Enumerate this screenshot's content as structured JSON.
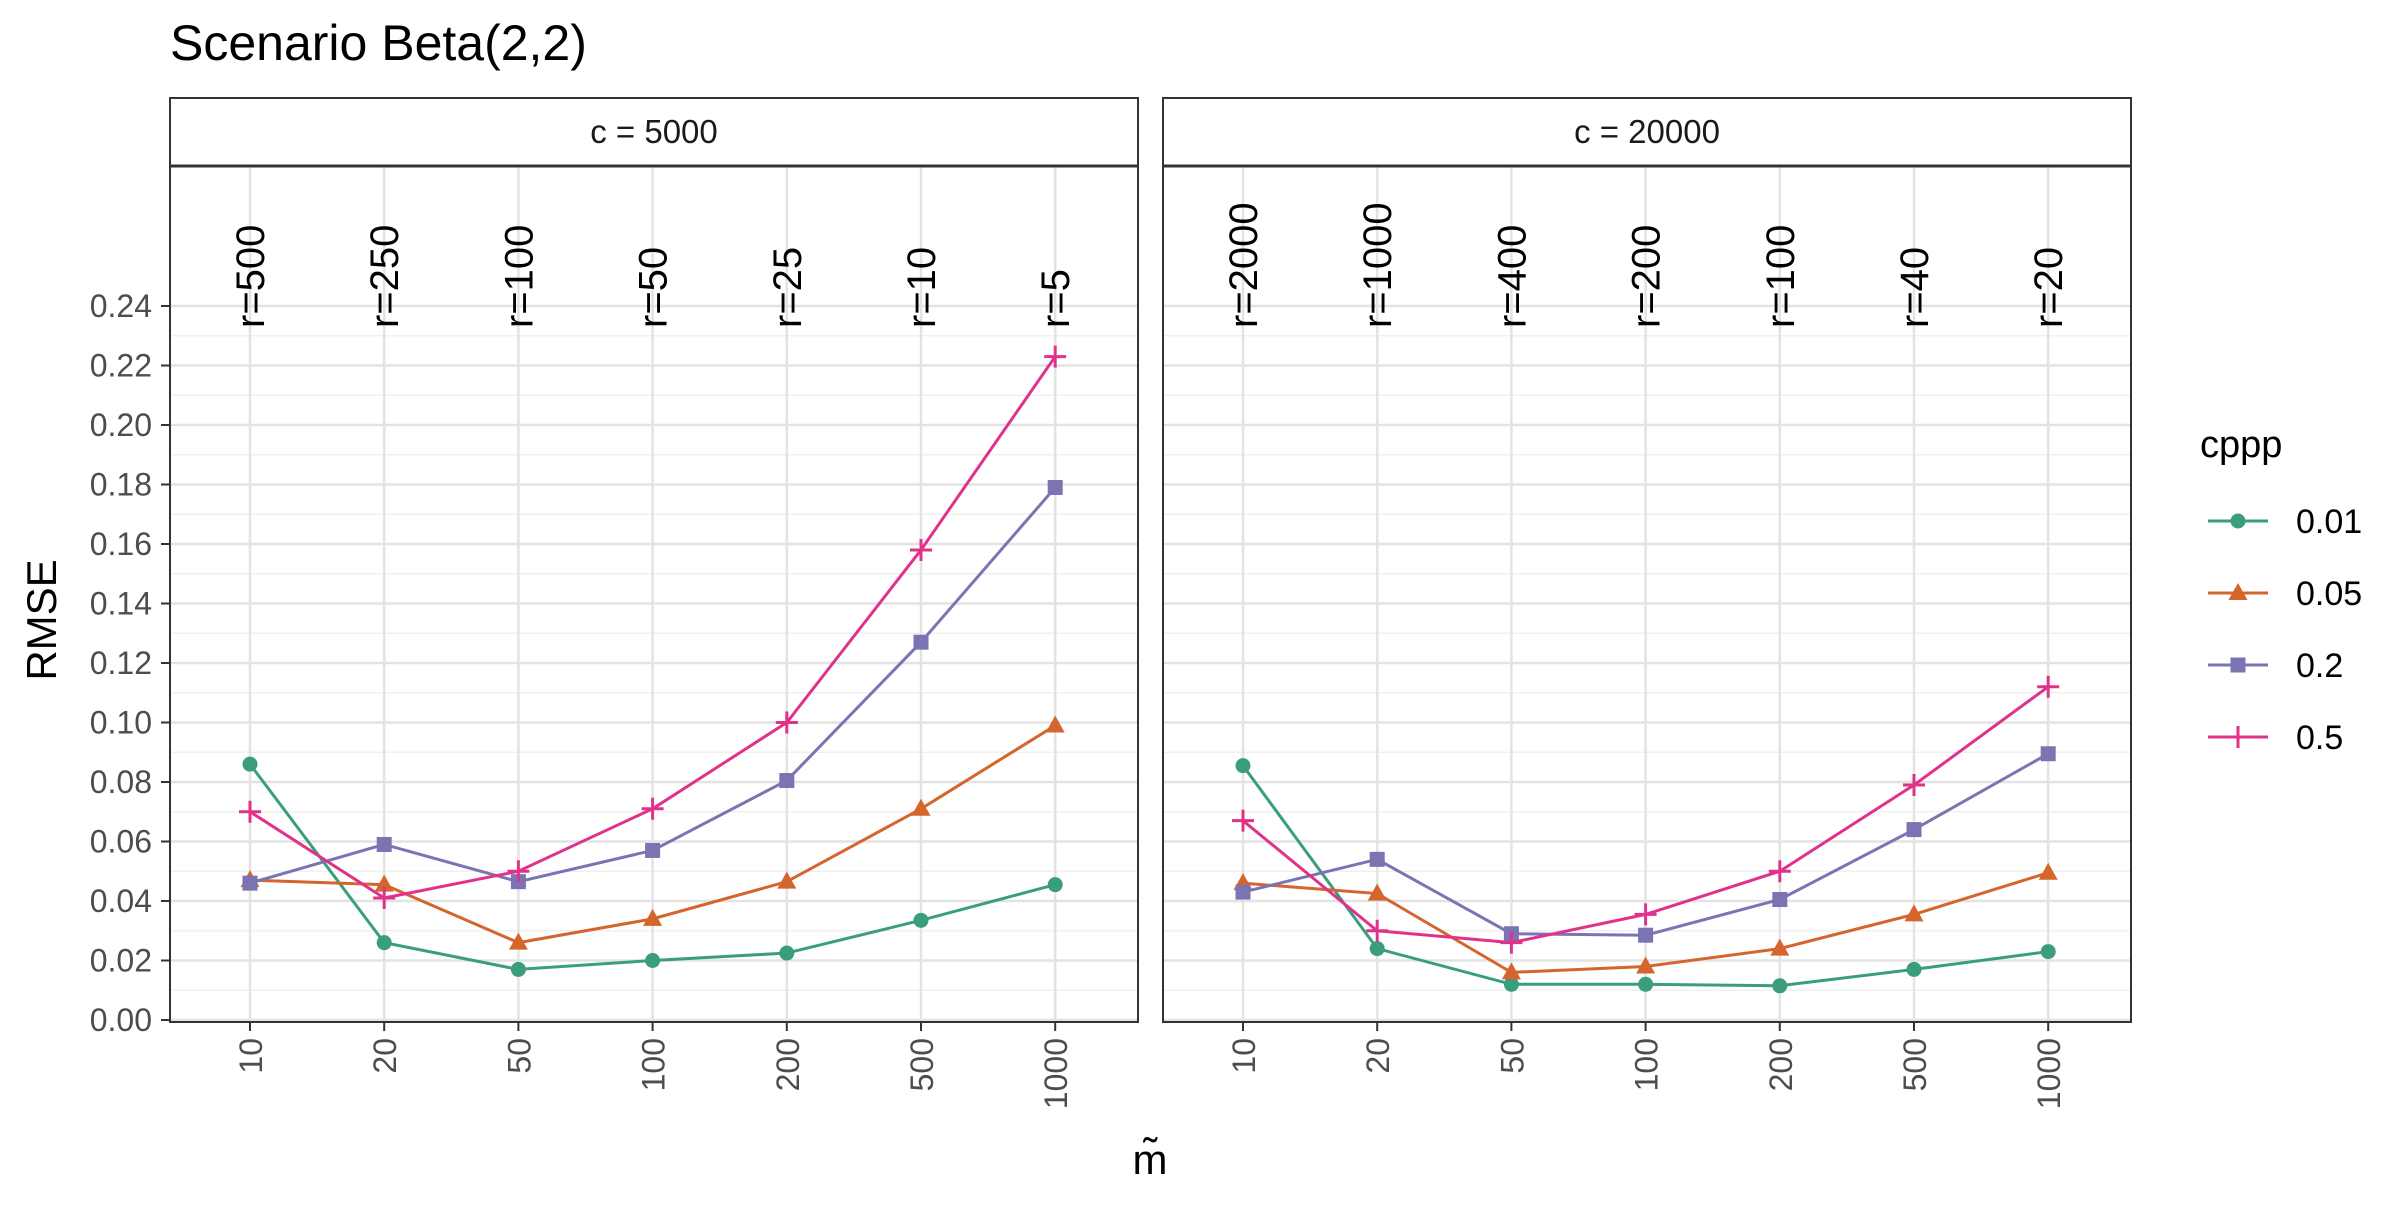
{
  "chart_data": {
    "type": "line",
    "title": "Scenario Beta(2,2)",
    "xlabel": "m̃",
    "ylabel": "RMSE",
    "x_categories": [
      "10",
      "20",
      "50",
      "100",
      "200",
      "500",
      "1000"
    ],
    "ylim": [
      0,
      0.24
    ],
    "y_ticks": [
      "0.00",
      "0.02",
      "0.04",
      "0.06",
      "0.08",
      "0.10",
      "0.12",
      "0.14",
      "0.16",
      "0.18",
      "0.20",
      "0.22",
      "0.24"
    ],
    "grid": true,
    "legend": {
      "title": "cppp",
      "placement": "right",
      "entries": [
        "0.01",
        "0.05",
        "0.2",
        "0.5"
      ]
    },
    "series_colors": {
      "0.01": "#3a9e7c",
      "0.05": "#d4652c",
      "0.2": "#7b74b3",
      "0.5": "#e0328a"
    },
    "series_markers": {
      "0.01": "circle",
      "0.05": "triangle",
      "0.2": "square",
      "0.5": "plus"
    },
    "panels": [
      {
        "strip": "c = 5000",
        "r_labels": [
          "r=500",
          "r=250",
          "r=100",
          "r=50",
          "r=25",
          "r=10",
          "r=5"
        ],
        "series": [
          {
            "name": "0.01",
            "values": [
              0.086,
              0.026,
              0.017,
              0.02,
              0.0225,
              0.0335,
              0.0455
            ]
          },
          {
            "name": "0.05",
            "values": [
              0.047,
              0.0455,
              0.026,
              0.034,
              0.0465,
              0.071,
              0.099
            ]
          },
          {
            "name": "0.2",
            "values": [
              0.046,
              0.059,
              0.0465,
              0.057,
              0.0805,
              0.127,
              0.179
            ]
          },
          {
            "name": "0.5",
            "values": [
              0.07,
              0.041,
              0.05,
              0.071,
              0.1,
              0.158,
              0.223
            ]
          }
        ]
      },
      {
        "strip": "c = 20000",
        "r_labels": [
          "r=2000",
          "r=1000",
          "r=400",
          "r=200",
          "r=100",
          "r=40",
          "r=20"
        ],
        "series": [
          {
            "name": "0.01",
            "values": [
              0.0855,
              0.024,
              0.012,
              0.012,
              0.0115,
              0.017,
              0.023
            ]
          },
          {
            "name": "0.05",
            "values": [
              0.046,
              0.0425,
              0.016,
              0.018,
              0.024,
              0.0355,
              0.0495
            ]
          },
          {
            "name": "0.2",
            "values": [
              0.043,
              0.054,
              0.029,
              0.0285,
              0.0405,
              0.064,
              0.0895
            ]
          },
          {
            "name": "0.5",
            "values": [
              0.067,
              0.03,
              0.026,
              0.0355,
              0.05,
              0.079,
              0.112
            ]
          }
        ]
      }
    ]
  }
}
